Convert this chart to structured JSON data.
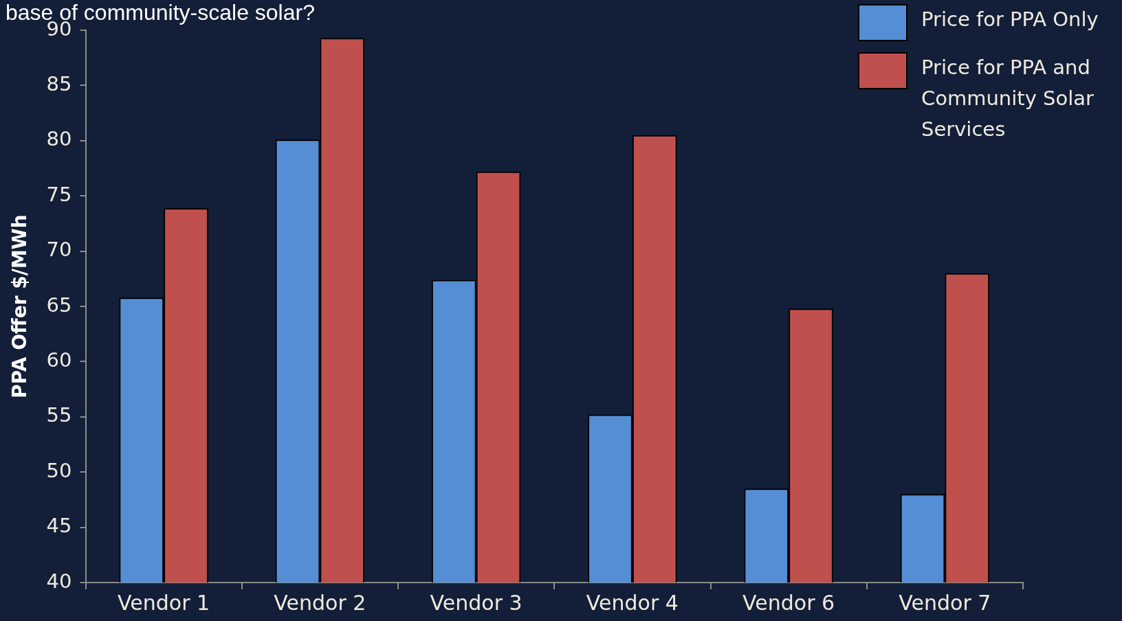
{
  "chart_data": {
    "type": "bar",
    "title": "base of community-scale solar?",
    "ylabel": "PPA Offer $/MWh",
    "categories": [
      "Vendor 1",
      "Vendor 2",
      "Vendor 3",
      "Vendor 4",
      "Vendor 6",
      "Vendor 7"
    ],
    "series": [
      {
        "name": "Price for PPA Only",
        "color": "#558ed5",
        "values": [
          65.8,
          80.1,
          67.4,
          55.2,
          48.5,
          48.0
        ]
      },
      {
        "name": "Price for PPA and Community Solar Services",
        "color": "#c0504d",
        "values": [
          73.9,
          89.3,
          77.2,
          80.5,
          64.8,
          68.0
        ]
      }
    ],
    "ylim": [
      40,
      90
    ],
    "yticks": [
      40,
      45,
      50,
      55,
      60,
      65,
      70,
      75,
      80,
      85,
      90
    ],
    "grid": false,
    "legend": "top right"
  }
}
